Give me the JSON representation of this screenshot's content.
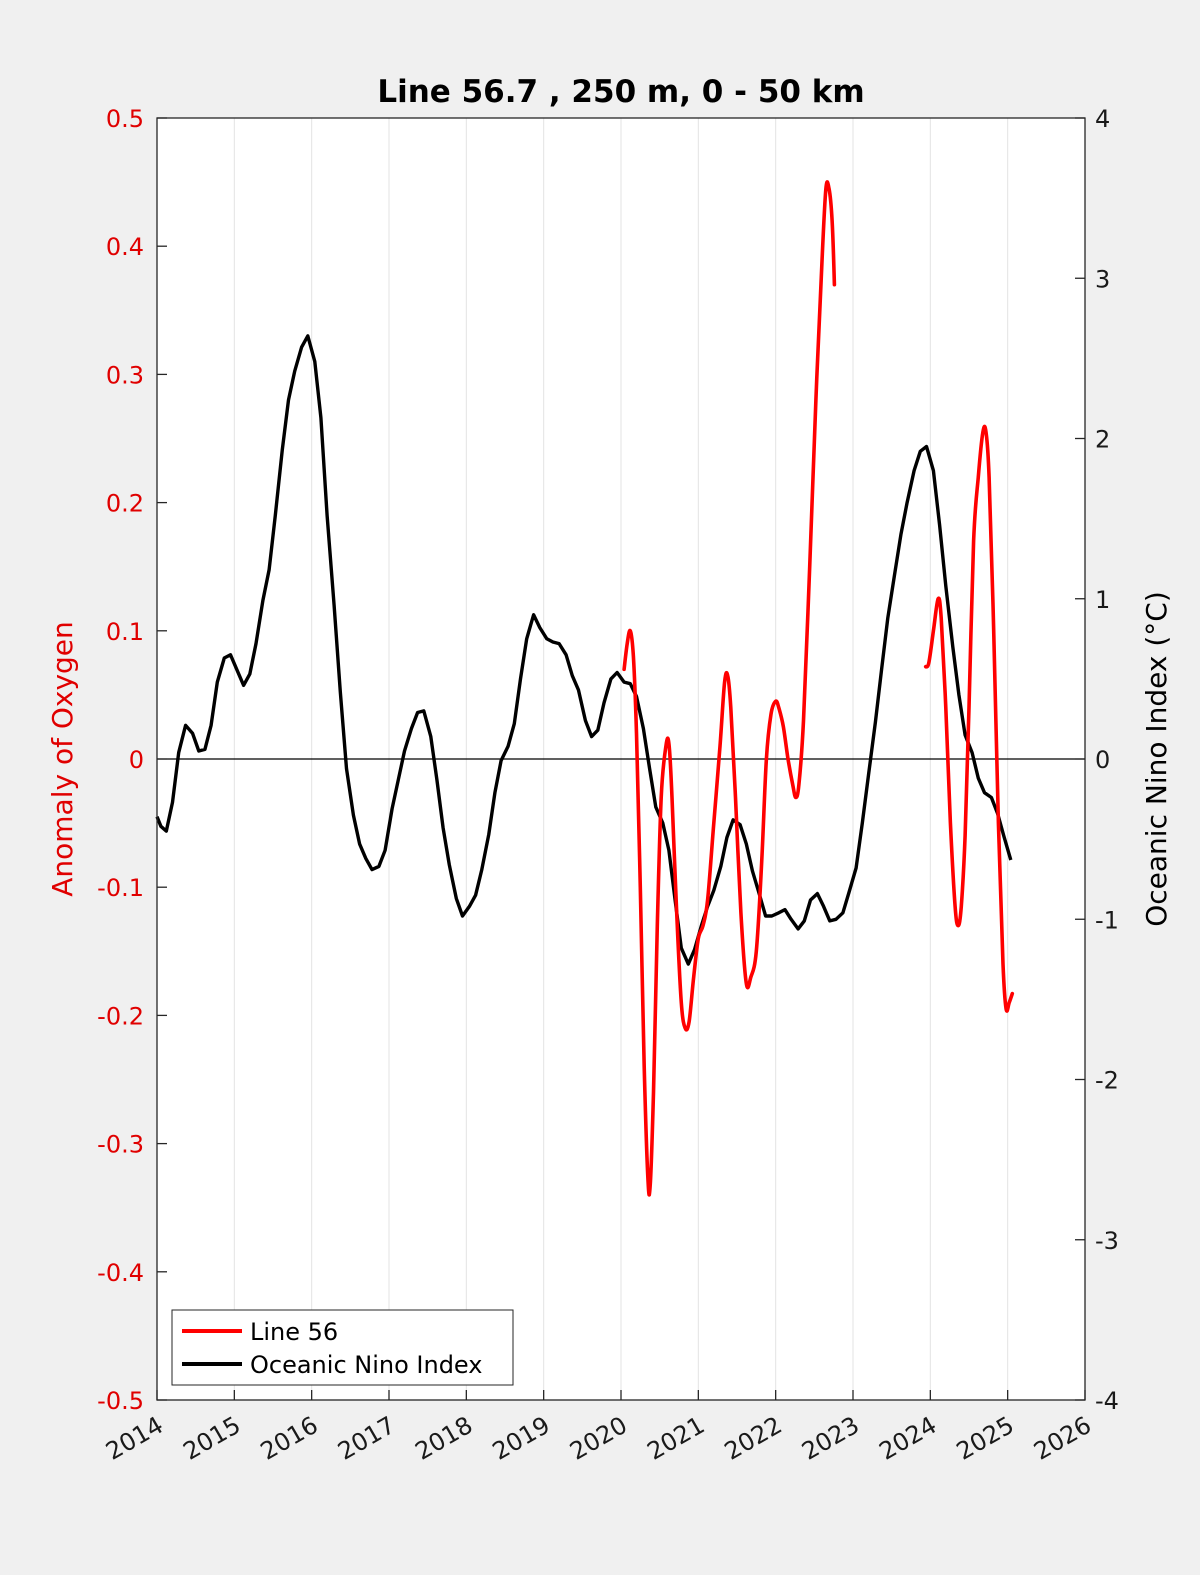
{
  "chart_data": {
    "type": "line",
    "title": "Line 56.7 , 250 m, 0 - 50 km",
    "xlabel": "",
    "ylabel": "Anomaly of Oxygen",
    "y2label": "Oceanic Nino Index (°C)",
    "xlim": [
      2014,
      2026
    ],
    "ylim": [
      -0.5,
      0.5
    ],
    "y2lim": [
      -4,
      4
    ],
    "xticks": [
      "2014",
      "2015",
      "2016",
      "2017",
      "2018",
      "2019",
      "2020",
      "2021",
      "2022",
      "2023",
      "2024",
      "2025",
      "2026"
    ],
    "yticks": [
      "-0.5",
      "-0.4",
      "-0.3",
      "-0.2",
      "-0.1",
      "0",
      "0.1",
      "0.2",
      "0.3",
      "0.4",
      "0.5"
    ],
    "y2ticks": [
      "-4",
      "-3",
      "-2",
      "-1",
      "0",
      "1",
      "2",
      "3",
      "4"
    ],
    "grid": "vertical",
    "zero_line": true,
    "legend_position": "bottom-left",
    "colors": {
      "line56": "#ff0000",
      "oni": "#000000",
      "axis_left": "#e00000"
    },
    "series": [
      {
        "name": "Line 56",
        "axis": "left",
        "segments": [
          [
            [
              2020.04,
              0.07
            ],
            [
              2020.08,
              0.09
            ],
            [
              2020.12,
              0.1
            ],
            [
              2020.16,
              0.08
            ],
            [
              2020.2,
              0.02
            ],
            [
              2020.25,
              -0.1
            ],
            [
              2020.3,
              -0.24
            ],
            [
              2020.35,
              -0.33
            ],
            [
              2020.38,
              -0.33
            ],
            [
              2020.42,
              -0.26
            ],
            [
              2020.47,
              -0.13
            ],
            [
              2020.52,
              -0.03
            ],
            [
              2020.58,
              0.01
            ],
            [
              2020.62,
              0.012
            ],
            [
              2020.66,
              -0.03
            ],
            [
              2020.72,
              -0.12
            ],
            [
              2020.78,
              -0.19
            ],
            [
              2020.83,
              -0.21
            ],
            [
              2020.88,
              -0.205
            ],
            [
              2020.94,
              -0.17
            ],
            [
              2021.0,
              -0.14
            ],
            [
              2021.06,
              -0.13
            ],
            [
              2021.12,
              -0.11
            ],
            [
              2021.2,
              -0.05
            ],
            [
              2021.28,
              0.01
            ],
            [
              2021.34,
              0.06
            ],
            [
              2021.38,
              0.065
            ],
            [
              2021.42,
              0.04
            ],
            [
              2021.48,
              -0.03
            ],
            [
              2021.55,
              -0.12
            ],
            [
              2021.62,
              -0.175
            ],
            [
              2021.68,
              -0.17
            ],
            [
              2021.75,
              -0.15
            ],
            [
              2021.82,
              -0.08
            ],
            [
              2021.88,
              0.0
            ],
            [
              2021.94,
              0.035
            ],
            [
              2022.0,
              0.045
            ],
            [
              2022.04,
              0.04
            ],
            [
              2022.1,
              0.025
            ],
            [
              2022.16,
              0.0
            ],
            [
              2022.22,
              -0.02
            ],
            [
              2022.26,
              -0.03
            ],
            [
              2022.3,
              -0.02
            ],
            [
              2022.36,
              0.03
            ],
            [
              2022.44,
              0.15
            ],
            [
              2022.52,
              0.28
            ],
            [
              2022.6,
              0.39
            ],
            [
              2022.65,
              0.445
            ],
            [
              2022.69,
              0.445
            ],
            [
              2022.73,
              0.42
            ],
            [
              2022.76,
              0.37
            ]
          ],
          [
            [
              2023.94,
              0.072
            ],
            [
              2023.98,
              0.075
            ],
            [
              2024.04,
              0.1
            ],
            [
              2024.1,
              0.125
            ],
            [
              2024.14,
              0.11
            ],
            [
              2024.2,
              0.04
            ],
            [
              2024.26,
              -0.05
            ],
            [
              2024.32,
              -0.115
            ],
            [
              2024.36,
              -0.13
            ],
            [
              2024.4,
              -0.115
            ],
            [
              2024.45,
              -0.06
            ],
            [
              2024.5,
              0.04
            ],
            [
              2024.56,
              0.17
            ],
            [
              2024.62,
              0.22
            ],
            [
              2024.68,
              0.255
            ],
            [
              2024.72,
              0.255
            ],
            [
              2024.76,
              0.22
            ],
            [
              2024.82,
              0.1
            ],
            [
              2024.88,
              -0.05
            ],
            [
              2024.94,
              -0.16
            ],
            [
              2024.98,
              -0.195
            ],
            [
              2025.02,
              -0.19
            ],
            [
              2025.06,
              -0.183
            ]
          ]
        ]
      },
      {
        "name": "Oceanic Nino Index",
        "axis": "right",
        "points": [
          [
            2014.0,
            -0.36
          ],
          [
            2014.05,
            -0.42
          ],
          [
            2014.12,
            -0.45
          ],
          [
            2014.2,
            -0.27
          ],
          [
            2014.28,
            0.04
          ],
          [
            2014.37,
            0.21
          ],
          [
            2014.46,
            0.16
          ],
          [
            2014.54,
            0.05
          ],
          [
            2014.62,
            0.06
          ],
          [
            2014.7,
            0.21
          ],
          [
            2014.78,
            0.48
          ],
          [
            2014.87,
            0.63
          ],
          [
            2014.95,
            0.65
          ],
          [
            2015.04,
            0.55
          ],
          [
            2015.12,
            0.46
          ],
          [
            2015.2,
            0.53
          ],
          [
            2015.28,
            0.72
          ],
          [
            2015.37,
            0.99
          ],
          [
            2015.45,
            1.18
          ],
          [
            2015.53,
            1.52
          ],
          [
            2015.62,
            1.93
          ],
          [
            2015.7,
            2.24
          ],
          [
            2015.78,
            2.42
          ],
          [
            2015.87,
            2.57
          ],
          [
            2015.95,
            2.64
          ],
          [
            2016.04,
            2.48
          ],
          [
            2016.12,
            2.13
          ],
          [
            2016.2,
            1.52
          ],
          [
            2016.29,
            0.96
          ],
          [
            2016.37,
            0.42
          ],
          [
            2016.45,
            -0.06
          ],
          [
            2016.54,
            -0.35
          ],
          [
            2016.62,
            -0.53
          ],
          [
            2016.7,
            -0.62
          ],
          [
            2016.78,
            -0.69
          ],
          [
            2016.87,
            -0.67
          ],
          [
            2016.95,
            -0.57
          ],
          [
            2017.04,
            -0.31
          ],
          [
            2017.12,
            -0.13
          ],
          [
            2017.2,
            0.05
          ],
          [
            2017.29,
            0.19
          ],
          [
            2017.37,
            0.29
          ],
          [
            2017.45,
            0.3
          ],
          [
            2017.54,
            0.14
          ],
          [
            2017.62,
            -0.13
          ],
          [
            2017.7,
            -0.43
          ],
          [
            2017.78,
            -0.66
          ],
          [
            2017.87,
            -0.87
          ],
          [
            2017.95,
            -0.98
          ],
          [
            2018.04,
            -0.92
          ],
          [
            2018.12,
            -0.85
          ],
          [
            2018.2,
            -0.69
          ],
          [
            2018.29,
            -0.47
          ],
          [
            2018.37,
            -0.21
          ],
          [
            2018.45,
            -0.01
          ],
          [
            2018.54,
            0.08
          ],
          [
            2018.62,
            0.22
          ],
          [
            2018.7,
            0.5
          ],
          [
            2018.78,
            0.75
          ],
          [
            2018.87,
            0.9
          ],
          [
            2018.95,
            0.82
          ],
          [
            2019.04,
            0.75
          ],
          [
            2019.12,
            0.73
          ],
          [
            2019.2,
            0.72
          ],
          [
            2019.29,
            0.65
          ],
          [
            2019.37,
            0.52
          ],
          [
            2019.45,
            0.43
          ],
          [
            2019.54,
            0.24
          ],
          [
            2019.62,
            0.14
          ],
          [
            2019.7,
            0.18
          ],
          [
            2019.78,
            0.35
          ],
          [
            2019.87,
            0.5
          ],
          [
            2019.95,
            0.54
          ],
          [
            2020.04,
            0.48
          ],
          [
            2020.12,
            0.47
          ],
          [
            2020.2,
            0.39
          ],
          [
            2020.29,
            0.19
          ],
          [
            2020.37,
            -0.06
          ],
          [
            2020.45,
            -0.3
          ],
          [
            2020.54,
            -0.4
          ],
          [
            2020.62,
            -0.57
          ],
          [
            2020.7,
            -0.88
          ],
          [
            2020.78,
            -1.18
          ],
          [
            2020.87,
            -1.28
          ],
          [
            2020.95,
            -1.19
          ],
          [
            2021.04,
            -1.04
          ],
          [
            2021.12,
            -0.92
          ],
          [
            2021.2,
            -0.82
          ],
          [
            2021.29,
            -0.67
          ],
          [
            2021.37,
            -0.49
          ],
          [
            2021.45,
            -0.38
          ],
          [
            2021.54,
            -0.41
          ],
          [
            2021.62,
            -0.53
          ],
          [
            2021.7,
            -0.7
          ],
          [
            2021.78,
            -0.83
          ],
          [
            2021.87,
            -0.98
          ],
          [
            2021.95,
            -0.98
          ],
          [
            2022.04,
            -0.96
          ],
          [
            2022.12,
            -0.94
          ],
          [
            2022.2,
            -1.0
          ],
          [
            2022.29,
            -1.06
          ],
          [
            2022.37,
            -1.01
          ],
          [
            2022.45,
            -0.88
          ],
          [
            2022.54,
            -0.84
          ],
          [
            2022.62,
            -0.92
          ],
          [
            2022.7,
            -1.01
          ],
          [
            2022.78,
            -1.0
          ],
          [
            2022.87,
            -0.96
          ],
          [
            2022.95,
            -0.83
          ],
          [
            2023.04,
            -0.68
          ],
          [
            2023.12,
            -0.4
          ],
          [
            2023.2,
            -0.1
          ],
          [
            2023.29,
            0.23
          ],
          [
            2023.37,
            0.56
          ],
          [
            2023.45,
            0.88
          ],
          [
            2023.54,
            1.16
          ],
          [
            2023.62,
            1.4
          ],
          [
            2023.7,
            1.6
          ],
          [
            2023.79,
            1.8
          ],
          [
            2023.87,
            1.92
          ],
          [
            2023.95,
            1.95
          ],
          [
            2024.04,
            1.8
          ],
          [
            2024.12,
            1.46
          ],
          [
            2024.2,
            1.08
          ],
          [
            2024.29,
            0.7
          ],
          [
            2024.37,
            0.4
          ],
          [
            2024.45,
            0.15
          ],
          [
            2024.54,
            0.04
          ],
          [
            2024.62,
            -0.12
          ],
          [
            2024.7,
            -0.21
          ],
          [
            2024.79,
            -0.24
          ],
          [
            2024.87,
            -0.34
          ],
          [
            2024.95,
            -0.48
          ],
          [
            2025.04,
            -0.63
          ]
        ]
      }
    ]
  }
}
